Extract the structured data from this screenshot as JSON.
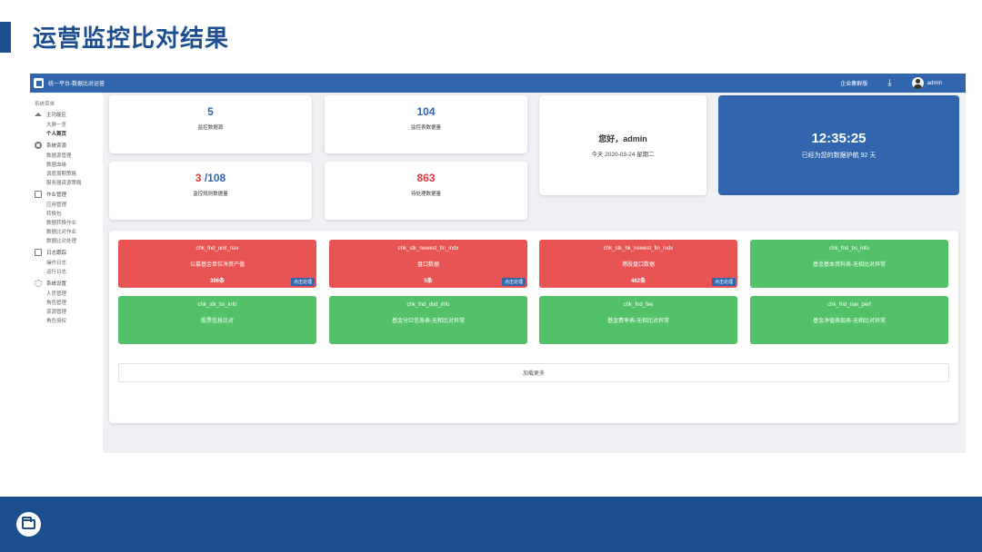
{
  "slide": {
    "title": "运营监控比对结果"
  },
  "app": {
    "title": "统一平台-数据比对运营",
    "topbar": {
      "cluster_label": "企业集群版",
      "download_icon": "download-icon",
      "username": "admin"
    },
    "sidebar": {
      "heading": "系统菜单",
      "groups": [
        {
          "label": "主功能区",
          "icon": "home-icon",
          "items": [
            "大屏一览",
            "个人首页"
          ],
          "active": "个人首页"
        },
        {
          "label": "系统资源",
          "icon": "gear-icon",
          "items": [
            "数据源管理",
            "数据血缘",
            "调度周期策略",
            "服务器资源策略"
          ]
        },
        {
          "label": "作业管理",
          "icon": "document-icon",
          "items": [
            "应用管理",
            "转换包",
            "数据转换作业",
            "数据比对作业",
            "数据比对处理"
          ]
        },
        {
          "label": "日志跟踪",
          "icon": "message-icon",
          "items": [
            "操作日志",
            "运行日志"
          ]
        },
        {
          "label": "系统设置",
          "icon": "settings-icon",
          "items": [
            "人员管理",
            "角色管理",
            "资源管理",
            "角色授权"
          ]
        }
      ]
    },
    "stats": [
      {
        "value": "5",
        "label": "监控数据源"
      },
      {
        "value": "104",
        "label": "监控表数据量"
      },
      {
        "value_red": "3",
        "value_rest": " /108",
        "label": "监控规则数据量"
      },
      {
        "value": "863",
        "label": "待处理数据量"
      }
    ],
    "greeting": {
      "hello": "您好，admin",
      "date": "今天 2020-03-24 星期二"
    },
    "clock": {
      "time": "12:35:25",
      "guard": "已经为您的数据护航 92 天"
    },
    "checks": [
      {
        "code": "chk_fnd_unit_nav",
        "desc": "公募基金单位净资产值",
        "count": "396条",
        "status": "error",
        "action": "点击处理"
      },
      {
        "code": "chk_stk_newest_fin_indx",
        "desc": "盘口数据",
        "count": "5条",
        "status": "error",
        "action": "点击处理"
      },
      {
        "code": "chk_stk_hk_newest_fin_indx",
        "desc": "港股盘口数据",
        "count": "462条",
        "status": "error",
        "action": "点击处理"
      },
      {
        "code": "chk_fnd_bs_info",
        "desc": "基金基本资料表-无相比对异常",
        "status": "ok"
      },
      {
        "code": "chk_stk_bs_info",
        "desc": "股票信息比对",
        "status": "ok"
      },
      {
        "code": "chk_fnd_dvd_info",
        "desc": "基金分红信息表-无相比对异常",
        "status": "ok"
      },
      {
        "code": "chk_fnd_fee",
        "desc": "基金费率表-无相比对异常",
        "status": "ok"
      },
      {
        "code": "chk_fnd_nav_perf",
        "desc": "基金净值表现表-无相比对异常",
        "status": "ok"
      }
    ],
    "load_more": "加载更多"
  },
  "colors": {
    "brand_blue": "#1d4e8f",
    "app_blue": "#3166ae",
    "error_red": "#e85454",
    "ok_green": "#52c168"
  }
}
